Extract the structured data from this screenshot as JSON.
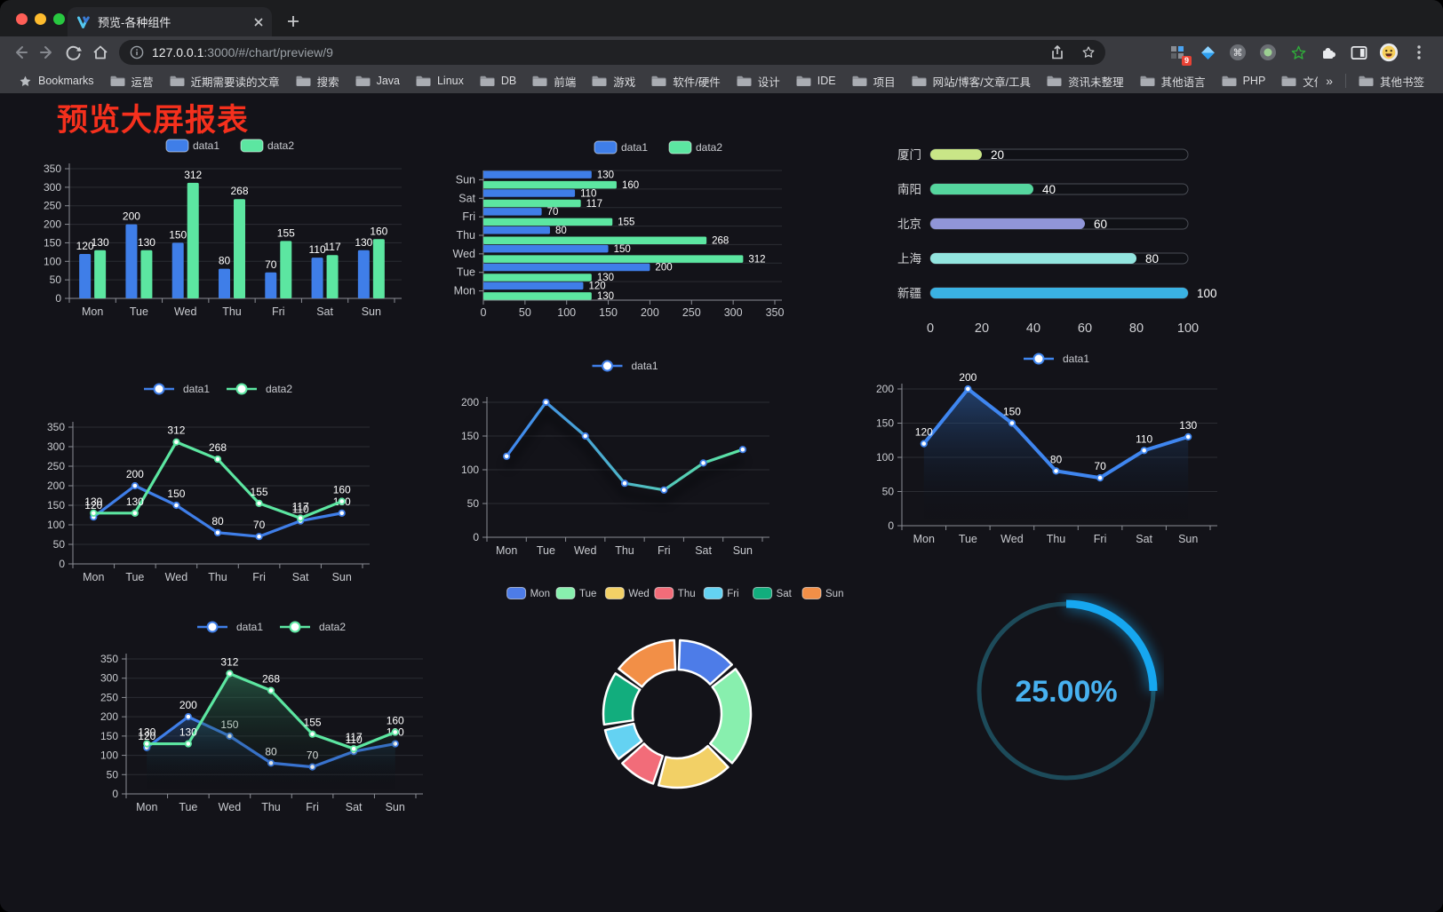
{
  "browser": {
    "tab_title": "预览-各种组件",
    "url_host": "127.0.0.1",
    "url_path": ":3000/#/chart/preview/9",
    "bookmarks_label": "Bookmarks",
    "bookmark_folders": [
      "运营",
      "近期需要读的文章",
      "搜索",
      "Java",
      "Linux",
      "DB",
      "前端",
      "游戏",
      "软件/硬件",
      "设计",
      "IDE",
      "项目",
      "网站/博客/文章/工具",
      "资讯未整理",
      "其他语言",
      "PHP",
      "文件服务器"
    ],
    "bookmarks_overflow": "»",
    "other_bookmarks": "其他书签",
    "extension_badge": "9"
  },
  "page": {
    "title": "预览大屏报表",
    "title_color": "#f5301d",
    "background": "#131319"
  },
  "chart_data": [
    {
      "id": "c1",
      "type": "bar",
      "categories": [
        "Mon",
        "Tue",
        "Wed",
        "Thu",
        "Fri",
        "Sat",
        "Sun"
      ],
      "series": [
        {
          "name": "data1",
          "color": "#3f7ee8",
          "values": [
            120,
            200,
            150,
            80,
            70,
            110,
            130
          ]
        },
        {
          "name": "data2",
          "color": "#5ce6a1",
          "values": [
            130,
            130,
            312,
            268,
            155,
            117,
            160
          ]
        }
      ],
      "ylim": [
        0,
        350
      ],
      "ystep": 50,
      "legend_position": "top",
      "grid": true,
      "show_labels": true
    },
    {
      "id": "c2",
      "type": "bar-horizontal",
      "categories": [
        "Mon",
        "Tue",
        "Wed",
        "Thu",
        "Fri",
        "Sat",
        "Sun"
      ],
      "display_order": "reversed",
      "series": [
        {
          "name": "data1",
          "color": "#3f7ee8",
          "values": [
            120,
            200,
            150,
            80,
            70,
            110,
            130
          ]
        },
        {
          "name": "data2",
          "color": "#5ce6a1",
          "values": [
            130,
            130,
            312,
            268,
            155,
            117,
            160
          ]
        }
      ],
      "xlim": [
        0,
        350
      ],
      "xstep": 50,
      "legend_position": "top",
      "show_labels": true
    },
    {
      "id": "c3",
      "type": "progress",
      "rows": [
        {
          "label": "厦门",
          "value": 20,
          "color": "#c9e687"
        },
        {
          "label": "南阳",
          "value": 40,
          "color": "#55d69e"
        },
        {
          "label": "北京",
          "value": 60,
          "color": "#9095d8"
        },
        {
          "label": "上海",
          "value": 80,
          "color": "#93e5df"
        },
        {
          "label": "新疆",
          "value": 100,
          "color": "#3ab2e3"
        }
      ],
      "xlim": [
        0,
        100
      ],
      "xticks": [
        0,
        20,
        40,
        60,
        80,
        100
      ]
    },
    {
      "id": "c4",
      "type": "line",
      "categories": [
        "Mon",
        "Tue",
        "Wed",
        "Thu",
        "Fri",
        "Sat",
        "Sun"
      ],
      "series": [
        {
          "name": "data1",
          "color": "#3f7ee8",
          "values": [
            120,
            200,
            150,
            80,
            70,
            110,
            130
          ]
        },
        {
          "name": "data2",
          "color": "#5ce6a1",
          "values": [
            130,
            130,
            312,
            268,
            155,
            117,
            160
          ]
        }
      ],
      "ylim": [
        0,
        350
      ],
      "ystep": 50,
      "legend_position": "top",
      "show_labels": true
    },
    {
      "id": "c5",
      "type": "line",
      "categories": [
        "Mon",
        "Tue",
        "Wed",
        "Thu",
        "Fri",
        "Sat",
        "Sun"
      ],
      "series": [
        {
          "name": "data1",
          "color": "#3f7ee8",
          "color_gradient": [
            "#3f86f0",
            "#5ce6a1"
          ],
          "values": [
            120,
            200,
            150,
            80,
            70,
            110,
            130
          ]
        }
      ],
      "ylim": [
        0,
        200
      ],
      "ystep": 50,
      "legend_position": "top",
      "show_labels": false,
      "shadow": true
    },
    {
      "id": "c6",
      "type": "line",
      "area": true,
      "categories": [
        "Mon",
        "Tue",
        "Wed",
        "Thu",
        "Fri",
        "Sat",
        "Sun"
      ],
      "series": [
        {
          "name": "data1",
          "color": "#3f86f0",
          "width": 4,
          "area_color": "rgba(47,101,176,0.55)",
          "values": [
            120,
            200,
            150,
            80,
            70,
            110,
            130
          ]
        }
      ],
      "ylim": [
        0,
        200
      ],
      "ystep": 50,
      "legend_position": "top",
      "show_labels": true
    },
    {
      "id": "c7",
      "type": "line",
      "area": true,
      "categories": [
        "Mon",
        "Tue",
        "Wed",
        "Thu",
        "Fri",
        "Sat",
        "Sun"
      ],
      "series": [
        {
          "name": "data1",
          "color": "#3f7ee8",
          "area_color": "rgba(44,88,150,0.5)",
          "values": [
            120,
            200,
            150,
            80,
            70,
            110,
            130
          ]
        },
        {
          "name": "data2",
          "color": "#5ce6a1",
          "area_color": "rgba(52,140,100,0.5)",
          "values": [
            130,
            130,
            312,
            268,
            155,
            117,
            160
          ]
        }
      ],
      "ylim": [
        0,
        350
      ],
      "ystep": 50,
      "legend_position": "top",
      "show_labels": true
    },
    {
      "id": "c8",
      "type": "pie",
      "categories": [
        "Mon",
        "Tue",
        "Wed",
        "Thu",
        "Fri",
        "Sat",
        "Sun"
      ],
      "values": [
        120,
        200,
        150,
        80,
        70,
        110,
        130
      ],
      "colors": [
        "#4d7ce8",
        "#88efae",
        "#f2d066",
        "#f26c79",
        "#64d2f2",
        "#12ad7d",
        "#f28f47"
      ],
      "legend_position": "top",
      "donut": true,
      "border_color": "#ffffff"
    },
    {
      "id": "c9",
      "type": "gauge",
      "label": "25.00%",
      "percent": 25,
      "arc_color": "#16a7f0",
      "track_color": "#1d4b5a",
      "text_color": "#47b1f0"
    }
  ]
}
